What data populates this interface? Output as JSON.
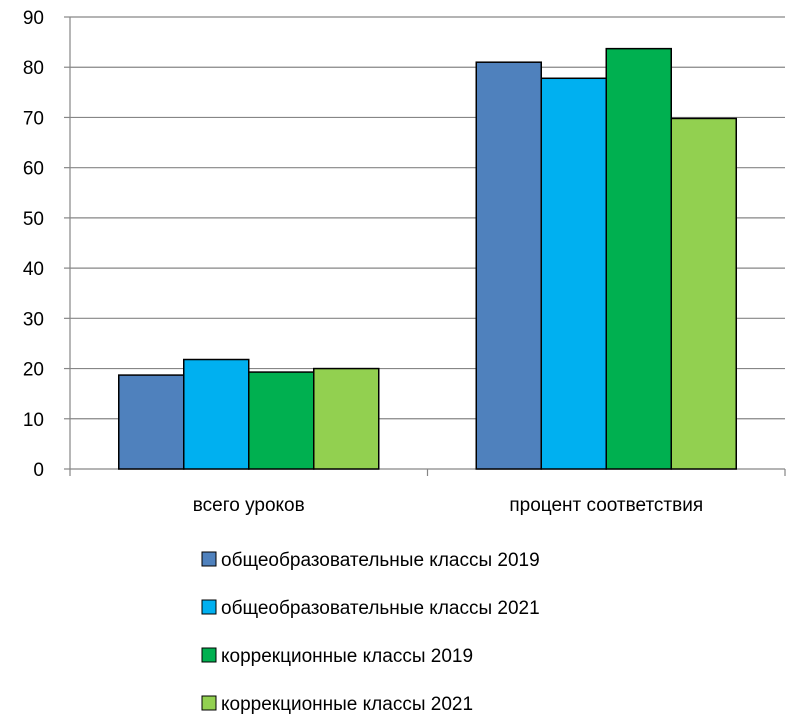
{
  "chart_data": {
    "type": "bar",
    "categories": [
      "всего уроков",
      "процент соответствия"
    ],
    "series": [
      {
        "name": "общеобразовательные классы 2019",
        "values": [
          18.7,
          81
        ],
        "color": "#4f81bd"
      },
      {
        "name": "общеобразовательные классы 2021",
        "values": [
          21.8,
          77.8
        ],
        "color": "#00b0f0"
      },
      {
        "name": "коррекционные классы 2019",
        "values": [
          19.3,
          83.7
        ],
        "color": "#00b050"
      },
      {
        "name": "коррекционные классы 2021",
        "values": [
          20,
          69.8
        ],
        "color": "#92d050"
      }
    ],
    "yticks": [
      "0",
      "10",
      "20",
      "30",
      "40",
      "50",
      "60",
      "70",
      "80",
      "90"
    ],
    "ylim": [
      0,
      90
    ],
    "grid": true,
    "legend_position": "bottom"
  }
}
